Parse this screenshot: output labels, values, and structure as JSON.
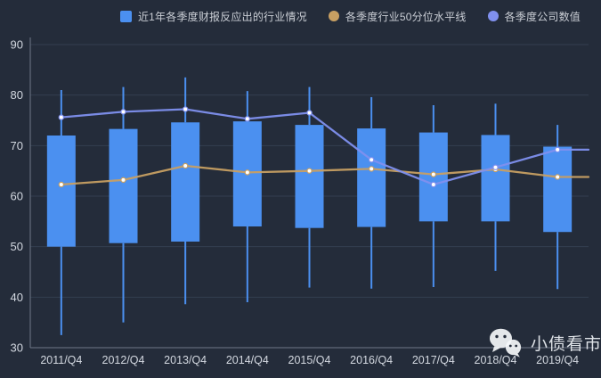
{
  "legend": {
    "items": [
      {
        "label": "近1年各季度财报反应出的行业情况",
        "marker": "square",
        "color": "#4b90f0"
      },
      {
        "label": "各季度行业50分位水平线",
        "marker": "circle",
        "color": "#c79f62"
      },
      {
        "label": "各季度公司数值",
        "marker": "circle",
        "color": "#8090ee"
      }
    ]
  },
  "watermark": {
    "icon": "wechat-icon",
    "text": "小债看市"
  },
  "colors": {
    "background": "#242c3a",
    "gridline": "#333e50",
    "axis_line": "#6f7888",
    "axis_label": "#d3d8e0",
    "box_fill": "#4b90f0",
    "whisker": "#4b90f0",
    "percentile_line": "#c79f62",
    "company_line": "#8090ee",
    "marker_fill": "#ffffff"
  },
  "chart_data": {
    "type": "boxplot+line",
    "title": "",
    "xlabel": "",
    "ylabel": "",
    "ylim": [
      30,
      90
    ],
    "yticks": [
      30,
      40,
      50,
      60,
      70,
      80,
      90
    ],
    "grid": true,
    "legend_position": "top",
    "categories": [
      "2011/Q4",
      "2012/Q4",
      "2013/Q4",
      "2014/Q4",
      "2015/Q4",
      "2016/Q4",
      "2017/Q4",
      "2018/Q4",
      "2019/Q4"
    ],
    "series": [
      {
        "name": "近1年各季度财报反应出的行业情况",
        "type": "boxplot",
        "note": "values are [whisker_low, box_bottom, box_top, whisker_high]",
        "values": [
          [
            32.5,
            50.0,
            72.0,
            81.0
          ],
          [
            35.0,
            50.7,
            73.3,
            81.6
          ],
          [
            38.6,
            51.0,
            74.6,
            83.5
          ],
          [
            39.0,
            54.0,
            74.8,
            80.8
          ],
          [
            41.9,
            53.7,
            74.1,
            81.6
          ],
          [
            41.7,
            53.9,
            73.4,
            79.6
          ],
          [
            42.0,
            55.0,
            72.6,
            78.0
          ],
          [
            45.2,
            55.0,
            72.1,
            78.3
          ],
          [
            41.6,
            52.9,
            69.8,
            74.1
          ]
        ]
      },
      {
        "name": "各季度行业50分位水平线",
        "type": "line",
        "values": [
          62.3,
          63.2,
          66.0,
          64.7,
          65.0,
          65.4,
          64.3,
          65.3,
          63.8
        ]
      },
      {
        "name": "各季度公司数值",
        "type": "line",
        "values": [
          75.6,
          76.7,
          77.2,
          75.3,
          76.5,
          67.2,
          62.3,
          65.7,
          69.2
        ]
      }
    ]
  }
}
